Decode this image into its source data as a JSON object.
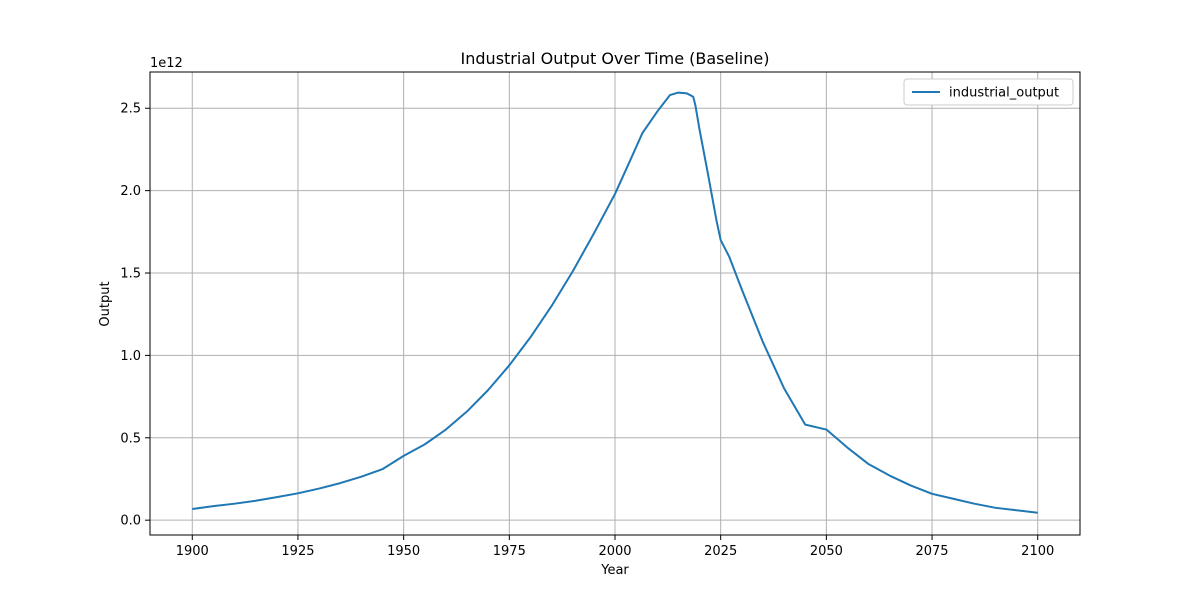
{
  "chart_data": {
    "type": "line",
    "title": "Industrial Output Over Time (Baseline)",
    "xlabel": "Year",
    "ylabel": "Output",
    "y_offset_label": "1e12",
    "y_scale": 1000000000000.0,
    "xlim": [
      1890,
      2110
    ],
    "ylim": [
      -0.09,
      2.72
    ],
    "x_ticks": [
      1900,
      1925,
      1950,
      1975,
      2000,
      2025,
      2050,
      2075,
      2100
    ],
    "y_ticks": [
      0.0,
      0.5,
      1.0,
      1.5,
      2.0,
      2.5
    ],
    "y_tick_labels": [
      "0.0",
      "0.5",
      "1.0",
      "1.5",
      "2.0",
      "2.5"
    ],
    "grid": true,
    "legend_position": "top-right",
    "series": [
      {
        "name": "industrial_output",
        "color": "#1f77b4",
        "x": [
          1900,
          1905,
          1910,
          1915,
          1920,
          1925,
          1930,
          1935,
          1940,
          1945,
          1950,
          1955,
          1960,
          1965,
          1970,
          1975,
          1980,
          1985,
          1990,
          1995,
          2000,
          2003,
          2006.5,
          2010,
          2013,
          2015,
          2017,
          2018.5,
          2019,
          2020,
          2022,
          2024,
          2025,
          2027,
          2030,
          2035,
          2040,
          2045,
          2050,
          2055,
          2060,
          2065,
          2070,
          2075,
          2080,
          2085,
          2090,
          2095,
          2100
        ],
        "values": [
          0.068,
          0.085,
          0.1,
          0.118,
          0.14,
          0.163,
          0.192,
          0.225,
          0.264,
          0.31,
          0.39,
          0.46,
          0.55,
          0.66,
          0.79,
          0.94,
          1.11,
          1.3,
          1.51,
          1.74,
          1.98,
          2.15,
          2.35,
          2.48,
          2.58,
          2.595,
          2.59,
          2.57,
          2.52,
          2.37,
          2.1,
          1.82,
          1.7,
          1.6,
          1.4,
          1.08,
          0.8,
          0.58,
          0.55,
          0.44,
          0.34,
          0.27,
          0.21,
          0.16,
          0.13,
          0.1,
          0.075,
          0.06,
          0.045
        ]
      }
    ]
  }
}
